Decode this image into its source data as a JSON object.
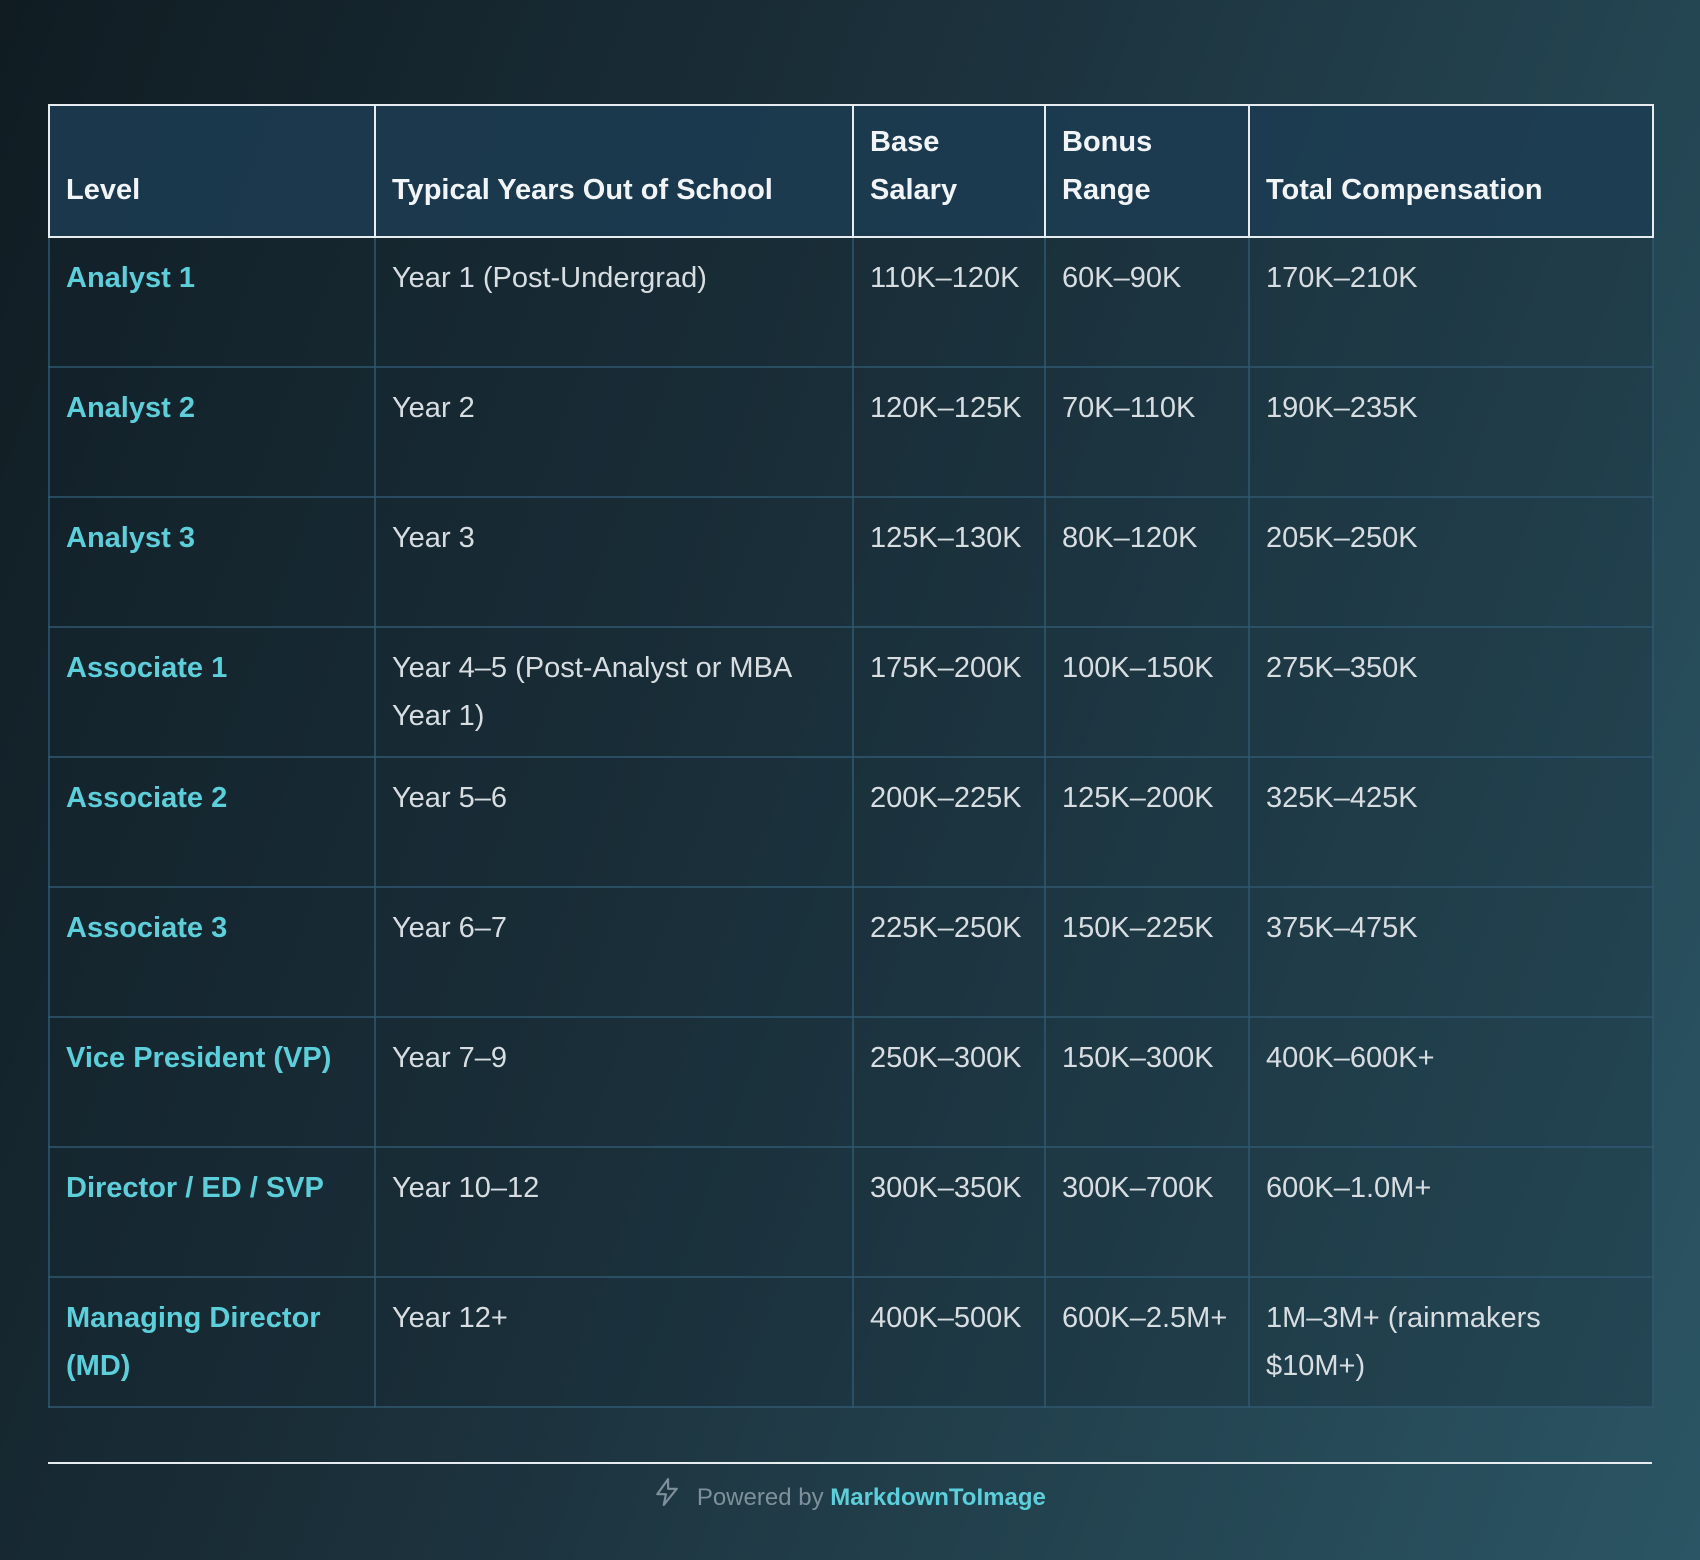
{
  "table": {
    "headers": [
      "Level",
      "Typical Years Out of School",
      "Base Salary",
      "Bonus Range",
      "Total Compensation"
    ],
    "rows": [
      {
        "level": "Analyst 1",
        "years": "Year 1 (Post-Undergrad)",
        "base": "110K–120K",
        "bonus": "60K–90K",
        "total": "170K–210K"
      },
      {
        "level": "Analyst 2",
        "years": "Year 2",
        "base": "120K–125K",
        "bonus": "70K–110K",
        "total": "190K–235K"
      },
      {
        "level": "Analyst 3",
        "years": "Year 3",
        "base": "125K–130K",
        "bonus": "80K–120K",
        "total": "205K–250K"
      },
      {
        "level": "Associate 1",
        "years": "Year 4–5 (Post-Analyst or MBA Year 1)",
        "base": "175K–200K",
        "bonus": "100K–150K",
        "total": "275K–350K"
      },
      {
        "level": "Associate 2",
        "years": "Year 5–6",
        "base": "200K–225K",
        "bonus": "125K–200K",
        "total": "325K–425K"
      },
      {
        "level": "Associate 3",
        "years": "Year 6–7",
        "base": "225K–250K",
        "bonus": "150K–225K",
        "total": "375K–475K"
      },
      {
        "level": "Vice President (VP)",
        "years": "Year 7–9",
        "base": "250K–300K",
        "bonus": "150K–300K",
        "total": "400K–600K+"
      },
      {
        "level": "Director / ED / SVP",
        "years": "Year 10–12",
        "base": "300K–350K",
        "bonus": "300K–700K",
        "total": "600K–1.0M+"
      },
      {
        "level": "Managing Director (MD)",
        "years": "Year 12+",
        "base": "400K–500K",
        "bonus": "600K–2.5M+",
        "total": "1M–3M+ (rainmakers $10M+)"
      }
    ]
  },
  "footer": {
    "prefix": "Powered by",
    "brand": "MarkdownToImage",
    "icon": "lightning-bolt-icon"
  }
}
